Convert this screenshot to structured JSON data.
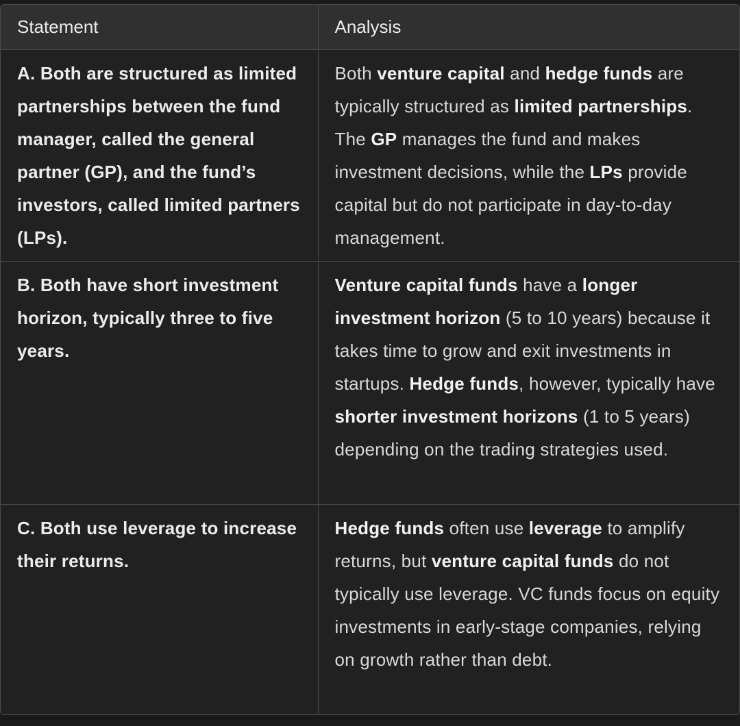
{
  "table": {
    "headers": {
      "statement": "Statement",
      "analysis": "Analysis"
    },
    "rows": [
      {
        "statement": "A. Both are structured as limited partnerships between the fund manager, called the general partner (GP), and the fund’s investors, called limited partners (LPs).",
        "analysis": [
          {
            "text": "Both ",
            "bold": false
          },
          {
            "text": "venture capital",
            "bold": true
          },
          {
            "text": " and ",
            "bold": false
          },
          {
            "text": "hedge funds",
            "bold": true
          },
          {
            "text": " are typically structured as ",
            "bold": false
          },
          {
            "text": "limited partnerships",
            "bold": true
          },
          {
            "text": ". The ",
            "bold": false
          },
          {
            "text": "GP",
            "bold": true
          },
          {
            "text": " manages the fund and makes investment decisions, while the ",
            "bold": false
          },
          {
            "text": "LPs",
            "bold": true
          },
          {
            "text": " provide capital but do not participate in day-to-day management.",
            "bold": false
          }
        ]
      },
      {
        "statement": "B. Both have short investment horizon, typically three to five years.",
        "analysis": [
          {
            "text": "Venture capital funds",
            "bold": true
          },
          {
            "text": " have a ",
            "bold": false
          },
          {
            "text": "longer investment horizon",
            "bold": true
          },
          {
            "text": " (5 to 10 years) because it takes time to grow and exit investments in startups. ",
            "bold": false
          },
          {
            "text": "Hedge funds",
            "bold": true
          },
          {
            "text": ", however, typically have ",
            "bold": false
          },
          {
            "text": "shorter investment horizons",
            "bold": true
          },
          {
            "text": " (1 to 5 years) depending on the trading strategies used.",
            "bold": false
          }
        ]
      },
      {
        "statement": "C. Both use leverage to increase their returns.",
        "analysis": [
          {
            "text": "Hedge funds",
            "bold": true
          },
          {
            "text": " often use ",
            "bold": false
          },
          {
            "text": "leverage",
            "bold": true
          },
          {
            "text": " to amplify returns, but ",
            "bold": false
          },
          {
            "text": "venture capital funds",
            "bold": true
          },
          {
            "text": " do not typically use leverage. VC funds focus on equity investments in early-stage companies, relying on growth rather than debt.",
            "bold": false
          }
        ]
      }
    ]
  }
}
